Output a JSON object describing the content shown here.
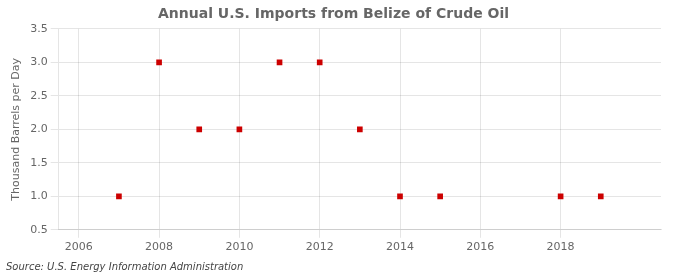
{
  "chart_data": {
    "type": "scatter",
    "title": "Annual U.S. Imports from Belize of Crude Oil",
    "ylabel": "Thousand Barrels per Day",
    "annotations": [
      "Source: U.S. Energy Information Administration"
    ],
    "x": [
      2007,
      2008,
      2009,
      2010,
      2011,
      2012,
      2013,
      2014,
      2015,
      2018,
      2019
    ],
    "values": [
      1.0,
      3.0,
      2.0,
      2.0,
      3.0,
      3.0,
      2.0,
      1.0,
      1.0,
      1.0,
      1.0
    ],
    "color": "#cc0000",
    "marker": "square",
    "xlim": [
      2005.5,
      2020.5
    ],
    "xticks": [
      2006,
      2008,
      2010,
      2012,
      2014,
      2016,
      2018
    ],
    "ylim": [
      0.5,
      3.5
    ],
    "yticks": [
      0.5,
      {
        "value": 1.0,
        "label": "1.0"
      },
      1.5,
      {
        "value": 2.0,
        "label": "2.0"
      },
      2.5,
      {
        "value": 3.0,
        "label": "3.0"
      },
      3.5
    ],
    "grid": true
  }
}
